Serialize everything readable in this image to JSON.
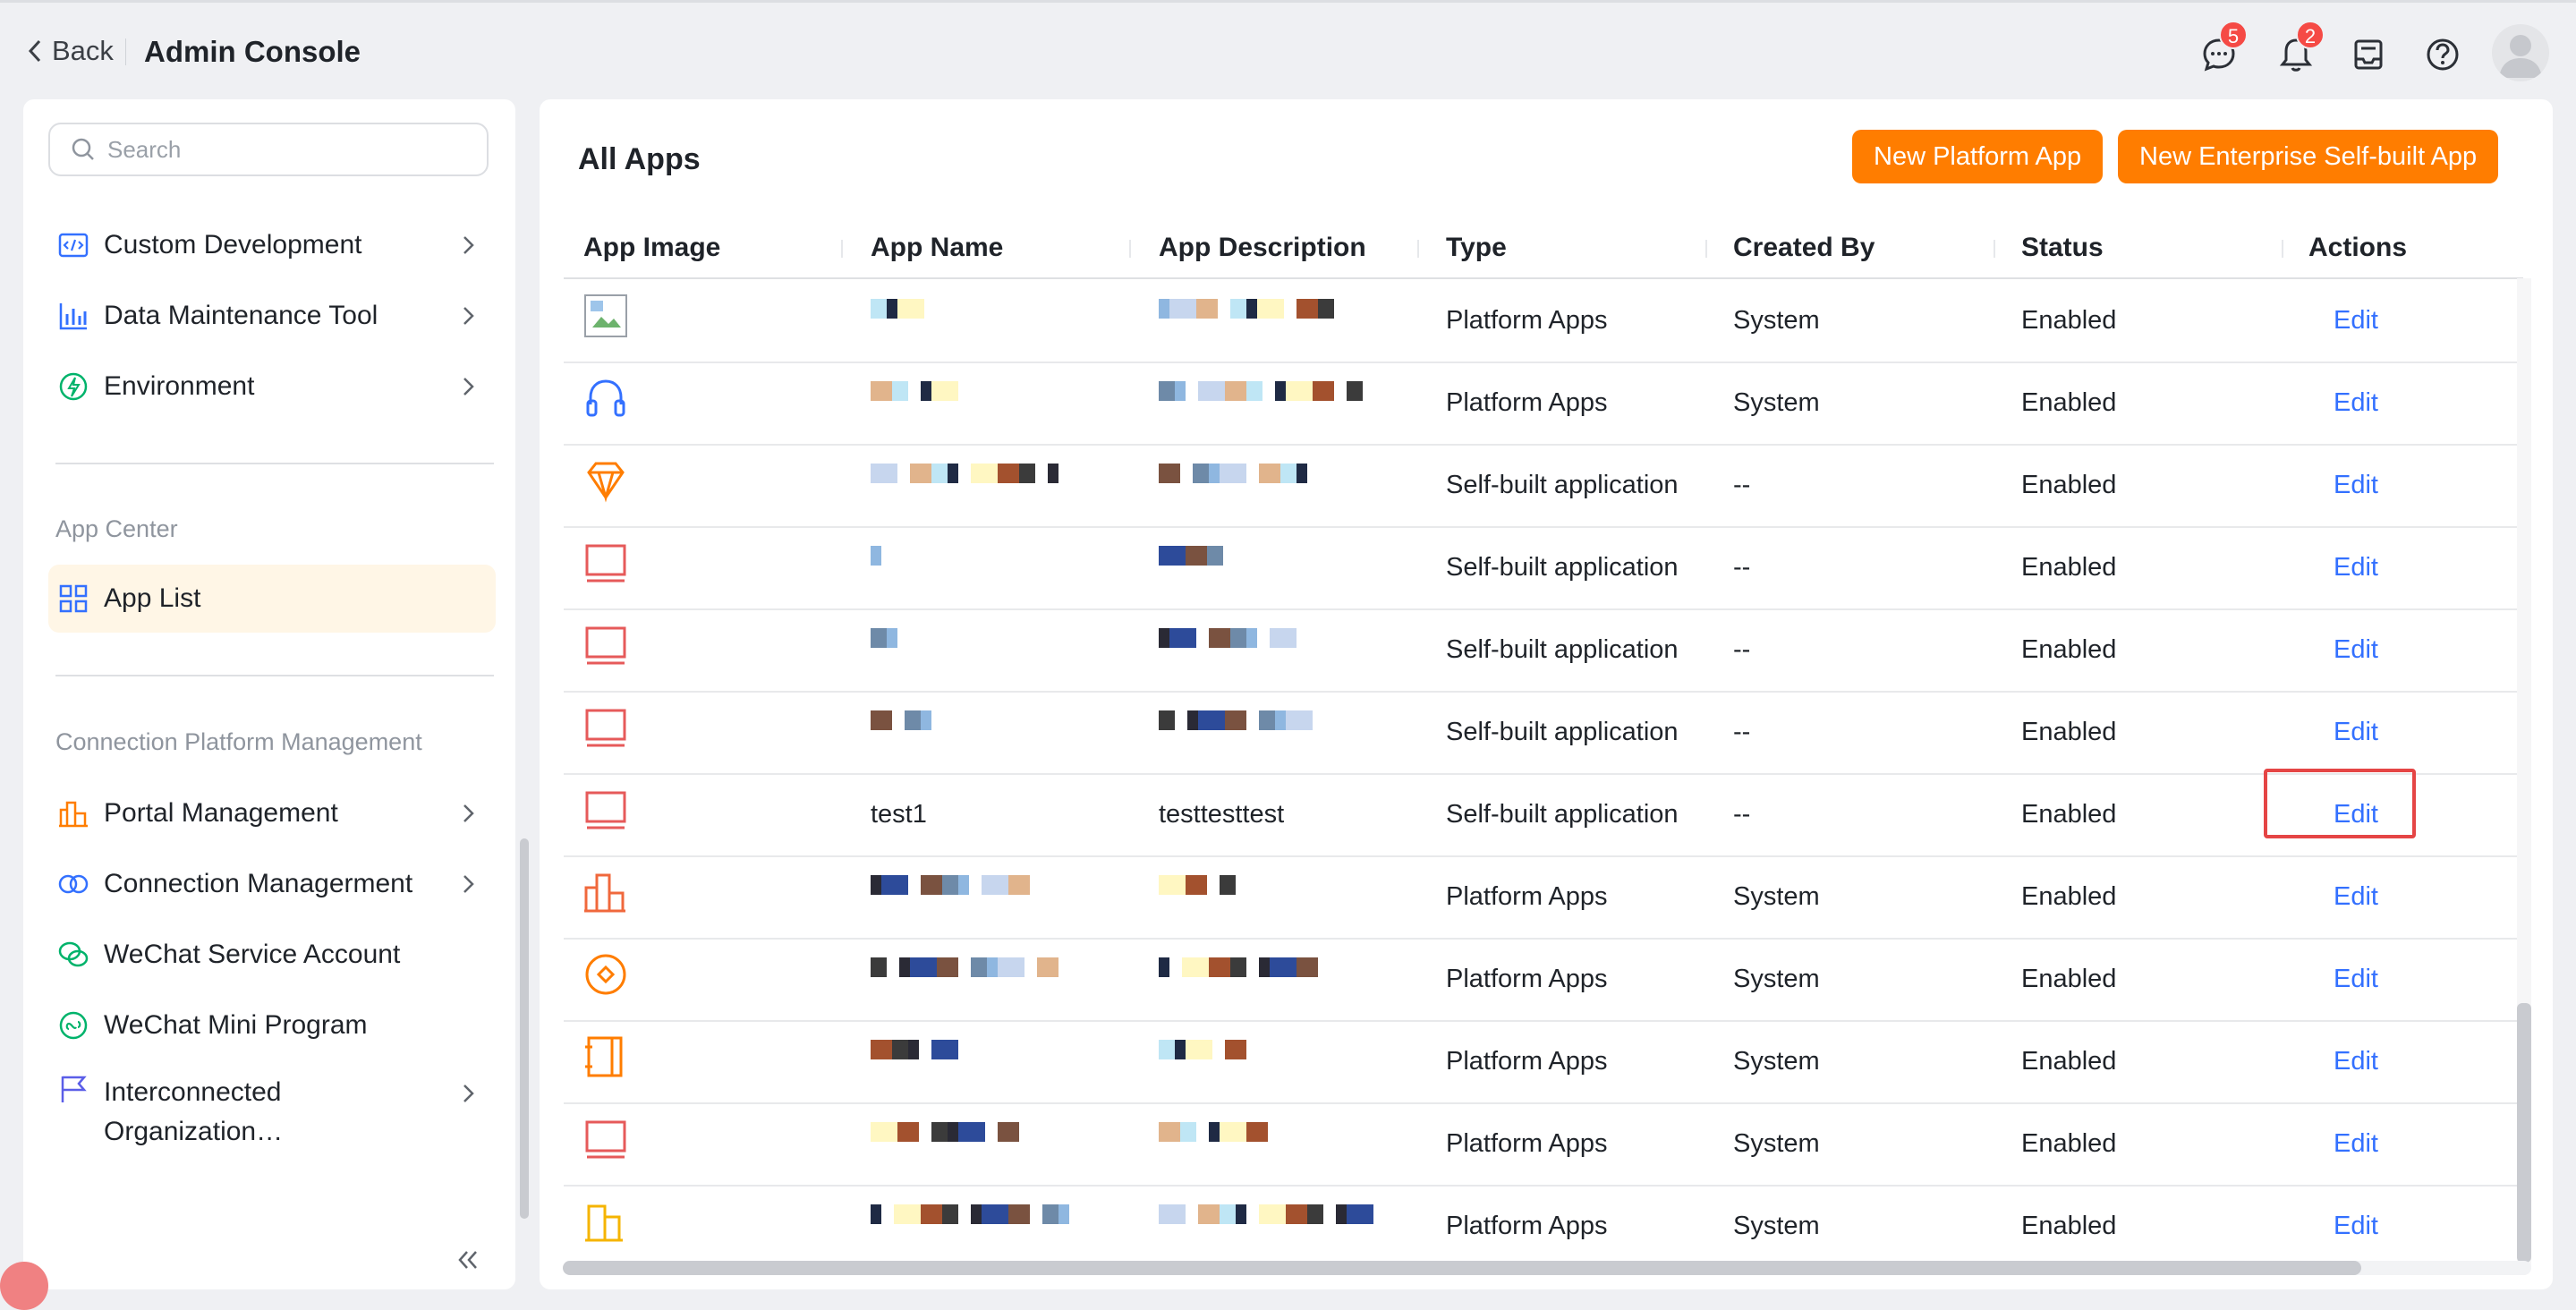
{
  "header": {
    "back_label": "Back",
    "title": "Admin Console",
    "messages_badge": "5",
    "notifications_badge": "2"
  },
  "sidebar": {
    "search_placeholder": "Search",
    "group1": [
      {
        "label": "Custom Development",
        "icon": "code-icon"
      },
      {
        "label": "Data Maintenance Tool",
        "icon": "bar-chart-icon"
      },
      {
        "label": "Environment",
        "icon": "environment-icon"
      }
    ],
    "section_app_center": "App Center",
    "app_list_label": "App List",
    "section_connection": "Connection Platform Management",
    "group2": [
      {
        "label": "Portal Management",
        "icon": "portal-icon"
      },
      {
        "label": "Connection Managerment",
        "icon": "connection-icon"
      },
      {
        "label": "WeChat Service Account",
        "icon": "wechat-icon"
      },
      {
        "label": "WeChat Mini Program",
        "icon": "mini-program-icon"
      },
      {
        "label": "Interconnected\nOrganization…",
        "icon": "flag-icon"
      }
    ]
  },
  "main": {
    "title": "All Apps",
    "new_platform_app": "New Platform App",
    "new_enterprise_app": "New Enterprise Self-built App",
    "columns": [
      "App Image",
      "App Name",
      "App Description",
      "Type",
      "Created By",
      "Status",
      "Actions"
    ],
    "rows": [
      {
        "icon": "broken-image-icon",
        "name": "",
        "desc": "",
        "type": "Platform Apps",
        "created_by": "System",
        "status": "Enabled",
        "action": "Edit"
      },
      {
        "icon": "headset-icon",
        "name": "",
        "desc": "",
        "type": "Platform Apps",
        "created_by": "System",
        "status": "Enabled",
        "action": "Edit"
      },
      {
        "icon": "diamond-icon",
        "name": "",
        "desc": "",
        "type": "Self-built application",
        "created_by": "--",
        "status": "Enabled",
        "action": "Edit"
      },
      {
        "icon": "monitor-icon",
        "name": "",
        "desc": "",
        "type": "Self-built application",
        "created_by": "--",
        "status": "Enabled",
        "action": "Edit"
      },
      {
        "icon": "monitor-icon",
        "name": "",
        "desc": "",
        "type": "Self-built application",
        "created_by": "--",
        "status": "Enabled",
        "action": "Edit"
      },
      {
        "icon": "monitor-icon",
        "name": "",
        "desc": "",
        "type": "Self-built application",
        "created_by": "--",
        "status": "Enabled",
        "action": "Edit"
      },
      {
        "icon": "monitor-icon",
        "name": "test1",
        "desc": "testtesttest",
        "type": "Self-built application",
        "created_by": "--",
        "status": "Enabled",
        "action": "Edit"
      },
      {
        "icon": "buildings-icon",
        "name": "",
        "desc": "",
        "type": "Platform Apps",
        "created_by": "System",
        "status": "Enabled",
        "action": "Edit"
      },
      {
        "icon": "compass-icon",
        "name": "",
        "desc": "",
        "type": "Platform Apps",
        "created_by": "System",
        "status": "Enabled",
        "action": "Edit"
      },
      {
        "icon": "notebook-icon",
        "name": "",
        "desc": "",
        "type": "Platform Apps",
        "created_by": "System",
        "status": "Enabled",
        "action": "Edit"
      },
      {
        "icon": "monitor-icon",
        "name": "",
        "desc": "",
        "type": "Platform Apps",
        "created_by": "System",
        "status": "Enabled",
        "action": "Edit"
      },
      {
        "icon": "building-icon",
        "name": "",
        "desc": "",
        "type": "Platform Apps",
        "created_by": "System",
        "status": "Enabled",
        "action": "Edit"
      }
    ]
  },
  "colors": {
    "accent": "#ff7d00",
    "link": "#3370ff",
    "active_bg": "#fff6e6",
    "highlight": "#e54545"
  }
}
